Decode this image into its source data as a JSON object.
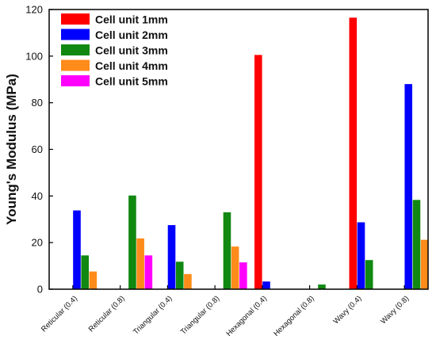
{
  "chart_data": {
    "type": "bar",
    "title": "",
    "xlabel": "",
    "ylabel": "Young's Modulus (MPa)",
    "ylim": [
      0,
      120
    ],
    "yticks": [
      0,
      20,
      40,
      60,
      80,
      100,
      120
    ],
    "grid": false,
    "legend_position": "top-left",
    "categories": [
      "Reticular (0.4)",
      "Reticular (0.8)",
      "Triangular (0.4)",
      "Triangular (0.8)",
      "Hexagonal (0.4)",
      "Hexagonal (0.8)",
      "Wavy (0.4)",
      "Wavy (0.8)"
    ],
    "series": [
      {
        "name": "Cell unit 1mm",
        "color": "#ff0000",
        "values": [
          null,
          null,
          null,
          null,
          100.5,
          null,
          116.5,
          null
        ]
      },
      {
        "name": "Cell unit 2mm",
        "color": "#0000ff",
        "values": [
          33.8,
          null,
          27.5,
          null,
          3.3,
          null,
          28.7,
          88.0
        ]
      },
      {
        "name": "Cell unit 3mm",
        "color": "#118811",
        "values": [
          14.5,
          40.2,
          11.8,
          33.0,
          null,
          2.0,
          12.5,
          38.3
        ]
      },
      {
        "name": "Cell unit 4mm",
        "color": "#ff8c1a",
        "values": [
          7.6,
          21.8,
          6.5,
          18.3,
          null,
          null,
          null,
          21.2
        ]
      },
      {
        "name": "Cell unit 5mm",
        "color": "#ff00ff",
        "values": [
          null,
          14.5,
          null,
          11.5,
          null,
          null,
          null,
          null
        ]
      }
    ]
  }
}
